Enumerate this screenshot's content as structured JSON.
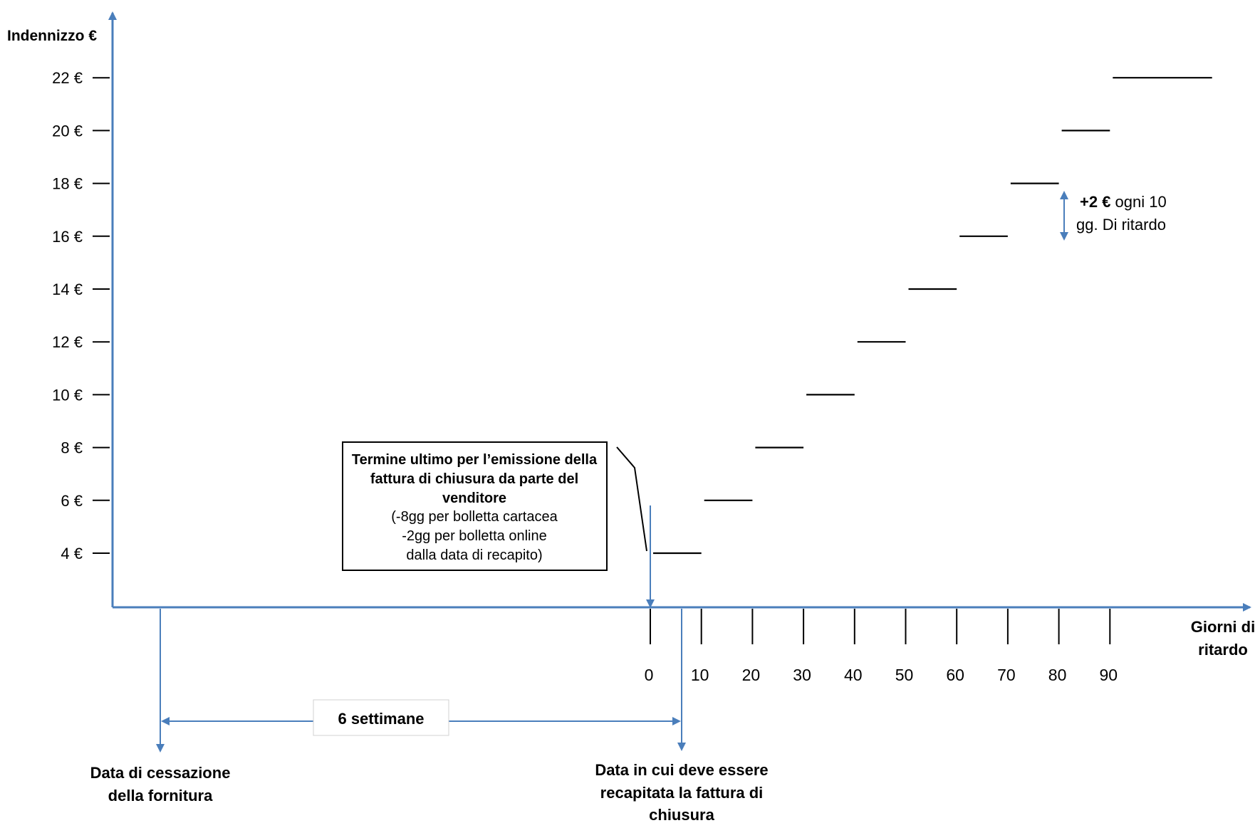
{
  "chart_data": {
    "type": "line",
    "ylabel": "Indennizzo €",
    "xlabel_lines": [
      "Giorni di",
      "ritardo"
    ],
    "y_ticks": [
      "22 €",
      "20 €",
      "18 €",
      "16 €",
      "14 €",
      "12 €",
      "10 €",
      "8 €",
      "6 €",
      "4 €"
    ],
    "x_ticks": [
      "0",
      "10",
      "20",
      "30",
      "40",
      "50",
      "60",
      "70",
      "80",
      "90"
    ],
    "steps": [
      {
        "x_from": 0,
        "x_to": 10,
        "y": 4
      },
      {
        "x_from": 10,
        "x_to": 20,
        "y": 6
      },
      {
        "x_from": 20,
        "x_to": 30,
        "y": 8
      },
      {
        "x_from": 30,
        "x_to": 40,
        "y": 10
      },
      {
        "x_from": 40,
        "x_to": 50,
        "y": 12
      },
      {
        "x_from": 50,
        "x_to": 60,
        "y": 14
      },
      {
        "x_from": 60,
        "x_to": 70,
        "y": 16
      },
      {
        "x_from": 70,
        "x_to": 80,
        "y": 18
      },
      {
        "x_from": 80,
        "x_to": 90,
        "y": 20
      },
      {
        "x_from": 90,
        "x_to": 110,
        "y": 22
      }
    ],
    "ylim": [
      2,
      24
    ],
    "grid": false,
    "annotations": {
      "increment_bold": "+2 €",
      "increment_rest": " ogni 10",
      "increment_line2": "gg. Di ritardo",
      "box_title_lines": [
        "Termine ultimo per l’emissione della",
        "fattura di chiusura da parte del",
        "venditore"
      ],
      "box_detail_lines": [
        "(-8gg per bolletta cartacea",
        "-2gg  per bolletta online",
        "dalla data di recapito)"
      ],
      "six_weeks": "6 settimane",
      "start_label_lines": [
        "Data di cessazione",
        "della fornitura"
      ],
      "delivery_label_lines": [
        "Data in cui deve essere",
        "recapitata la fattura di",
        "chiusura"
      ]
    },
    "colors": {
      "axis": "#4a7ebb",
      "step": "#000000",
      "text": "#000000"
    }
  }
}
